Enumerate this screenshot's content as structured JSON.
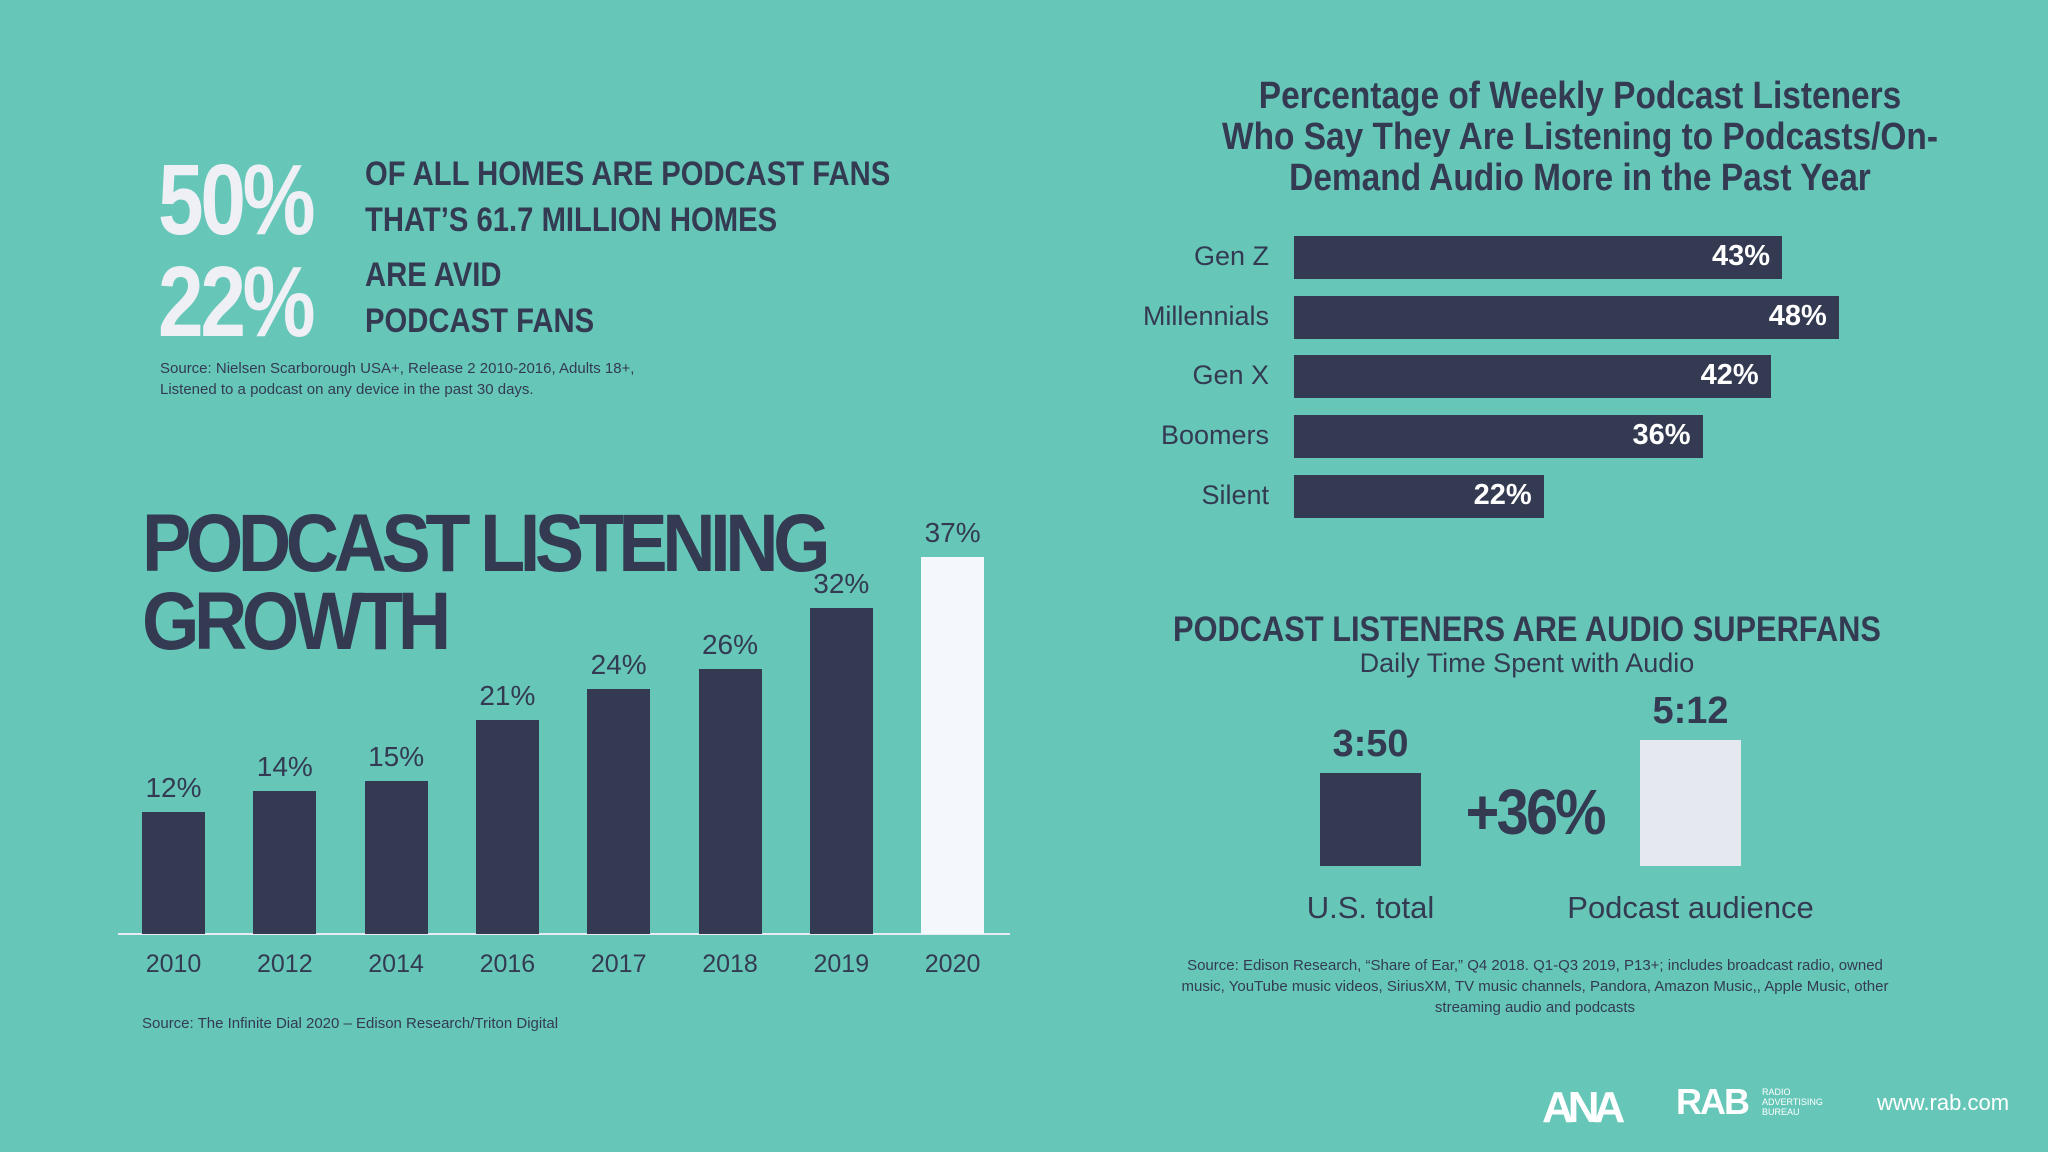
{
  "stats": {
    "stat1_pct": "50%",
    "stat1_line1": "OF ALL HOMES ARE PODCAST FANS",
    "stat1_line2": "THAT’S 61.7 MILLION HOMES",
    "stat2_pct": "22%",
    "stat2_line1": "ARE AVID",
    "stat2_line2": "PODCAST FANS",
    "source_line1": "Source: Nielsen Scarborough USA+, Release 2 2010-2016, Adults 18+,",
    "source_line2": "Listened to a podcast on any device in the past 30 days."
  },
  "growth": {
    "title_line1": "PODCAST LISTENING",
    "title_line2": "GROWTH",
    "source": "Source: The Infinite Dial 2020 – Edison Research/Triton Digital"
  },
  "weekly": {
    "title_line1": "Percentage of Weekly Podcast Listeners",
    "title_line2": "Who Say They Are Listening to Podcasts/On-",
    "title_line3": "Demand Audio More in the Past Year"
  },
  "superfans": {
    "title": "PODCAST LISTENERS ARE AUDIO SUPERFANS",
    "subtitle": "Daily Time Spent with Audio",
    "diff_label": "+36%",
    "source_line1": "Source: Edison Research, “Share of Ear,” Q4 2018. Q1-Q3 2019, P13+; includes broadcast radio, owned",
    "source_line2": "music, YouTube music videos, SiriusXM, TV music channels, Pandora, Amazon Music,, Apple Music, other",
    "source_line3": "streaming audio and podcasts"
  },
  "footer": {
    "ana_logo": "ANA",
    "rab_logo": "RAB",
    "rab_sub1": "RADIO",
    "rab_sub2": "ADVERTISING",
    "rab_sub3": "BUREAU",
    "url": "www.rab.com"
  },
  "colors": {
    "background": "#66c7b9",
    "navy": "#333a52",
    "highlight": "#f4f7fc",
    "light": "#e6e8f0"
  },
  "chart_data": [
    {
      "type": "bar",
      "categories": [
        "2010",
        "2012",
        "2014",
        "2016",
        "2017",
        "2018",
        "2019",
        "2020"
      ],
      "values": [
        12,
        14,
        15,
        21,
        24,
        26,
        32,
        37
      ],
      "value_labels": [
        "12%",
        "14%",
        "15%",
        "21%",
        "24%",
        "26%",
        "32%",
        "37%"
      ],
      "title": "PODCAST LISTENING GROWTH",
      "highlight_category": "2020",
      "ylim": [
        0,
        40
      ]
    },
    {
      "type": "bar",
      "orientation": "horizontal",
      "categories": [
        "Gen Z",
        "Millennials",
        "Gen X",
        "Boomers",
        "Silent"
      ],
      "values": [
        43,
        48,
        42,
        36,
        22
      ],
      "value_labels": [
        "43%",
        "48%",
        "42%",
        "36%",
        "22%"
      ],
      "title": "Percentage of Weekly Podcast Listeners Who Say They Are Listening to Podcasts/On-Demand Audio More in the Past Year",
      "xlim": [
        0,
        60
      ]
    },
    {
      "type": "bar",
      "categories": [
        "U.S. total",
        "Podcast audience"
      ],
      "values": [
        230,
        312
      ],
      "value_labels": [
        "3:50",
        "5:12"
      ],
      "unit": "minutes",
      "title": "PODCAST LISTENERS ARE AUDIO SUPERFANS",
      "subtitle": "Daily Time Spent with Audio",
      "ylim": [
        0,
        330
      ]
    }
  ]
}
